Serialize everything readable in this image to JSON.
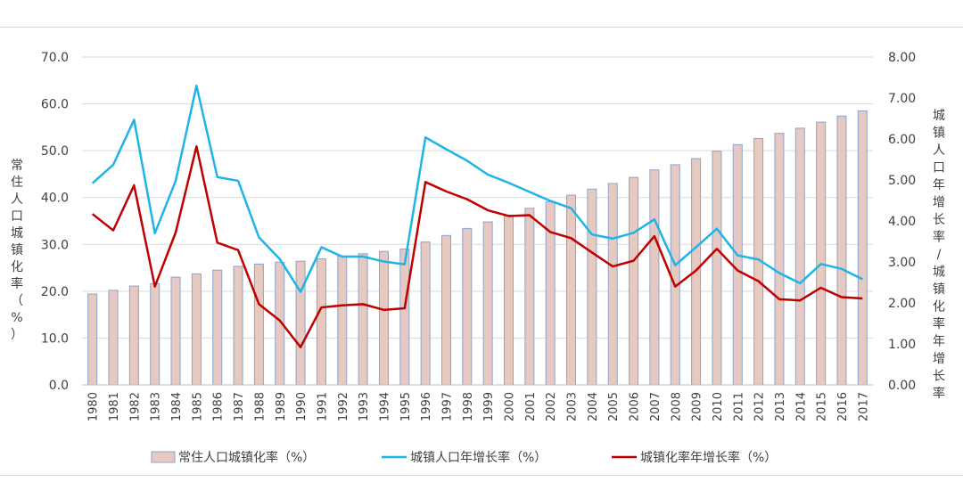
{
  "chart_data": {
    "type": "bar",
    "categories": [
      "1980",
      "1981",
      "1982",
      "1983",
      "1984",
      "1985",
      "1986",
      "1987",
      "1988",
      "1989",
      "1990",
      "1991",
      "1992",
      "1993",
      "1994",
      "1995",
      "1996",
      "1997",
      "1998",
      "1999",
      "2000",
      "2001",
      "2002",
      "2003",
      "2004",
      "2005",
      "2006",
      "2007",
      "2008",
      "2009",
      "2010",
      "2011",
      "2012",
      "2013",
      "2014",
      "2015",
      "2016",
      "2017"
    ],
    "left_axis": {
      "label": "常住人口城镇化率（%）",
      "ylim": [
        0,
        70
      ],
      "ticks": [
        "0.0",
        "10.0",
        "20.0",
        "30.0",
        "40.0",
        "50.0",
        "60.0",
        "70.0"
      ]
    },
    "right_axis": {
      "label": "城镇人口年增长率/城镇化率年增长率",
      "ylim": [
        0,
        8
      ],
      "ticks": [
        "0.00",
        "1.00",
        "2.00",
        "3.00",
        "4.00",
        "5.00",
        "6.00",
        "7.00",
        "8.00"
      ]
    },
    "series": [
      {
        "name": "常住人口城镇化率（%）",
        "type": "bar",
        "axis": "left",
        "color": "#e6c9c0",
        "edge_color": "#8fa3c8",
        "values": [
          19.4,
          20.2,
          21.1,
          21.6,
          23.0,
          23.7,
          24.5,
          25.3,
          25.8,
          26.2,
          26.4,
          26.9,
          27.5,
          28.0,
          28.5,
          29.0,
          30.5,
          31.9,
          33.4,
          34.8,
          36.2,
          37.7,
          39.1,
          40.5,
          41.8,
          43.0,
          44.3,
          45.9,
          47.0,
          48.3,
          49.9,
          51.3,
          52.6,
          53.7,
          54.8,
          56.1,
          57.4,
          58.5
        ]
      },
      {
        "name": "城镇人口年增长率（%）",
        "type": "line",
        "axis": "right",
        "color": "#1fb4e8",
        "values": [
          4.92,
          5.37,
          6.47,
          3.7,
          4.98,
          7.3,
          5.07,
          4.98,
          3.6,
          3.07,
          2.27,
          3.36,
          3.13,
          3.13,
          3.01,
          2.94,
          6.04,
          5.75,
          5.47,
          5.13,
          4.93,
          4.71,
          4.49,
          4.31,
          3.67,
          3.57,
          3.71,
          4.04,
          2.92,
          3.36,
          3.81,
          3.16,
          3.06,
          2.73,
          2.48,
          2.95,
          2.83,
          2.58
        ]
      },
      {
        "name": "城镇化率年增长率（%）",
        "type": "line",
        "axis": "right",
        "color": "#c00000",
        "values": [
          4.17,
          3.77,
          4.87,
          2.4,
          3.72,
          5.82,
          3.47,
          3.29,
          1.97,
          1.57,
          0.92,
          1.89,
          1.94,
          1.97,
          1.83,
          1.87,
          4.95,
          4.72,
          4.53,
          4.26,
          4.12,
          4.14,
          3.73,
          3.58,
          3.23,
          2.89,
          3.03,
          3.63,
          2.4,
          2.79,
          3.32,
          2.79,
          2.53,
          2.09,
          2.06,
          2.37,
          2.14,
          2.11
        ]
      }
    ],
    "legend_position": "bottom",
    "grid": true
  }
}
